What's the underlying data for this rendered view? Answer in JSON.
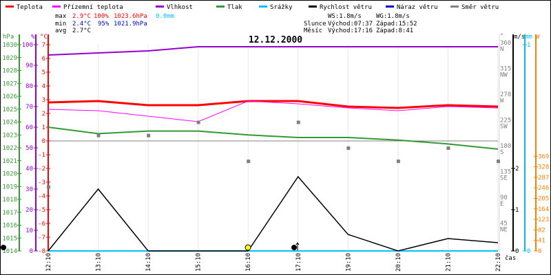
{
  "chart_data": {
    "type": "line",
    "title": "12.12.2000",
    "xlabel": "čas",
    "categories": [
      "12:10",
      "13:10",
      "14:10",
      "15:10",
      "16:10",
      "17:10",
      "19:10",
      "20:10",
      "21:10",
      "22:10"
    ],
    "legend": [
      {
        "name": "Teplota",
        "color": "#ff0000"
      },
      {
        "name": "Přízemní teplota",
        "color": "#ff00ff"
      },
      {
        "name": "Vlhkost",
        "color": "#9400d3"
      },
      {
        "name": "Tlak",
        "color": "#339933"
      },
      {
        "name": "Srážky",
        "color": "#00bfff"
      },
      {
        "name": "Rychlost větru",
        "color": "#000000"
      },
      {
        "name": "Náraz větru",
        "color": "#0000cc"
      },
      {
        "name": "Směr větru",
        "color": "#808080"
      }
    ],
    "series": [
      {
        "name": "Teplota",
        "axis": "temp",
        "color": "#ff0000",
        "values": [
          2.8,
          2.9,
          2.6,
          2.6,
          2.9,
          2.9,
          2.5,
          2.4,
          2.6,
          2.5
        ]
      },
      {
        "name": "Přízemní teplota",
        "axis": "temp",
        "color": "#ff00ff",
        "values": [
          2.3,
          2.2,
          1.8,
          1.4,
          2.9,
          2.7,
          2.4,
          2.2,
          2.5,
          2.4
        ]
      },
      {
        "name": "Vlhkost",
        "axis": "hum",
        "color": "#9400d3",
        "values": [
          95,
          96,
          97,
          99,
          99,
          99,
          99,
          99,
          99,
          99
        ]
      },
      {
        "name": "Tlak",
        "axis": "pres",
        "color": "#339933",
        "values": [
          1023.6,
          1023.1,
          1023.3,
          1023.3,
          1023.0,
          1022.8,
          1022.8,
          1022.6,
          1022.3,
          1021.9
        ]
      },
      {
        "name": "Srážky",
        "axis": "rain",
        "color": "#00bfff",
        "values": [
          0,
          0,
          0,
          0,
          0,
          0,
          0,
          0,
          0,
          0
        ]
      },
      {
        "name": "Rychlost větru",
        "axis": "wind",
        "color": "#000000",
        "values": [
          0,
          1.5,
          0,
          0,
          0,
          1.8,
          0.4,
          0,
          0.3,
          0.2
        ]
      },
      {
        "name": "Směr větru",
        "axis": "dir",
        "color": "#808080",
        "marker": "square",
        "values": [
          112,
          202,
          202,
          225,
          157,
          225,
          180,
          157,
          180,
          157
        ]
      }
    ],
    "axes": {
      "temp": {
        "label": "°C",
        "range": [
          -8,
          7
        ],
        "color": "#ff0000"
      },
      "hum": {
        "label": "%",
        "range": [
          0,
          100
        ],
        "color": "#9400d3"
      },
      "pres": {
        "label": "hPa",
        "range": [
          1014,
          1030
        ],
        "color": "#339933"
      },
      "dir": {
        "label": "°",
        "range": [
          0,
          360
        ],
        "ticks": [
          [
            "45",
            "NE"
          ],
          [
            "90",
            "E"
          ],
          [
            "135",
            "SE"
          ],
          [
            "180",
            "S"
          ],
          [
            "225",
            "SW"
          ],
          [
            "270",
            "W"
          ],
          [
            "315",
            "NW"
          ],
          [
            "360",
            "N"
          ]
        ],
        "color": "#808080"
      },
      "wind": {
        "label": "m/s",
        "range": [
          0,
          5
        ],
        "ticks": [
          "0",
          "1",
          "2"
        ],
        "color": "#000000"
      },
      "rain": {
        "label": "mm",
        "ticks": [
          "0",
          "1"
        ],
        "color": "#00bfff"
      },
      "solar": {
        "label": "W",
        "ticks": [
          "0",
          "41",
          "82",
          "123",
          "164",
          "205",
          "246",
          "287",
          "328",
          "369"
        ],
        "color": "#ff8000"
      }
    },
    "stats": {
      "max_label": "max",
      "min_label": "min",
      "avg_label": "avg",
      "max_temp": "2.9°C",
      "max_hum": "100%",
      "max_pres": "1023.6hPa",
      "max_rain": "0.0mm",
      "min_temp": "2.4°C",
      "min_hum": "95%",
      "min_pres": "1021.9hPa",
      "avg_temp": "2.7°C",
      "ws": "WS:1.8m/s",
      "wg": "WG:1.8m/s",
      "sun_label": "Slunce",
      "sun_rise": "Východ:07:37",
      "sun_set": "Západ:15:52",
      "moon_label": "Měsíc",
      "moon_rise": "Východ:17:16",
      "moon_set": "Západ:8:41"
    }
  }
}
